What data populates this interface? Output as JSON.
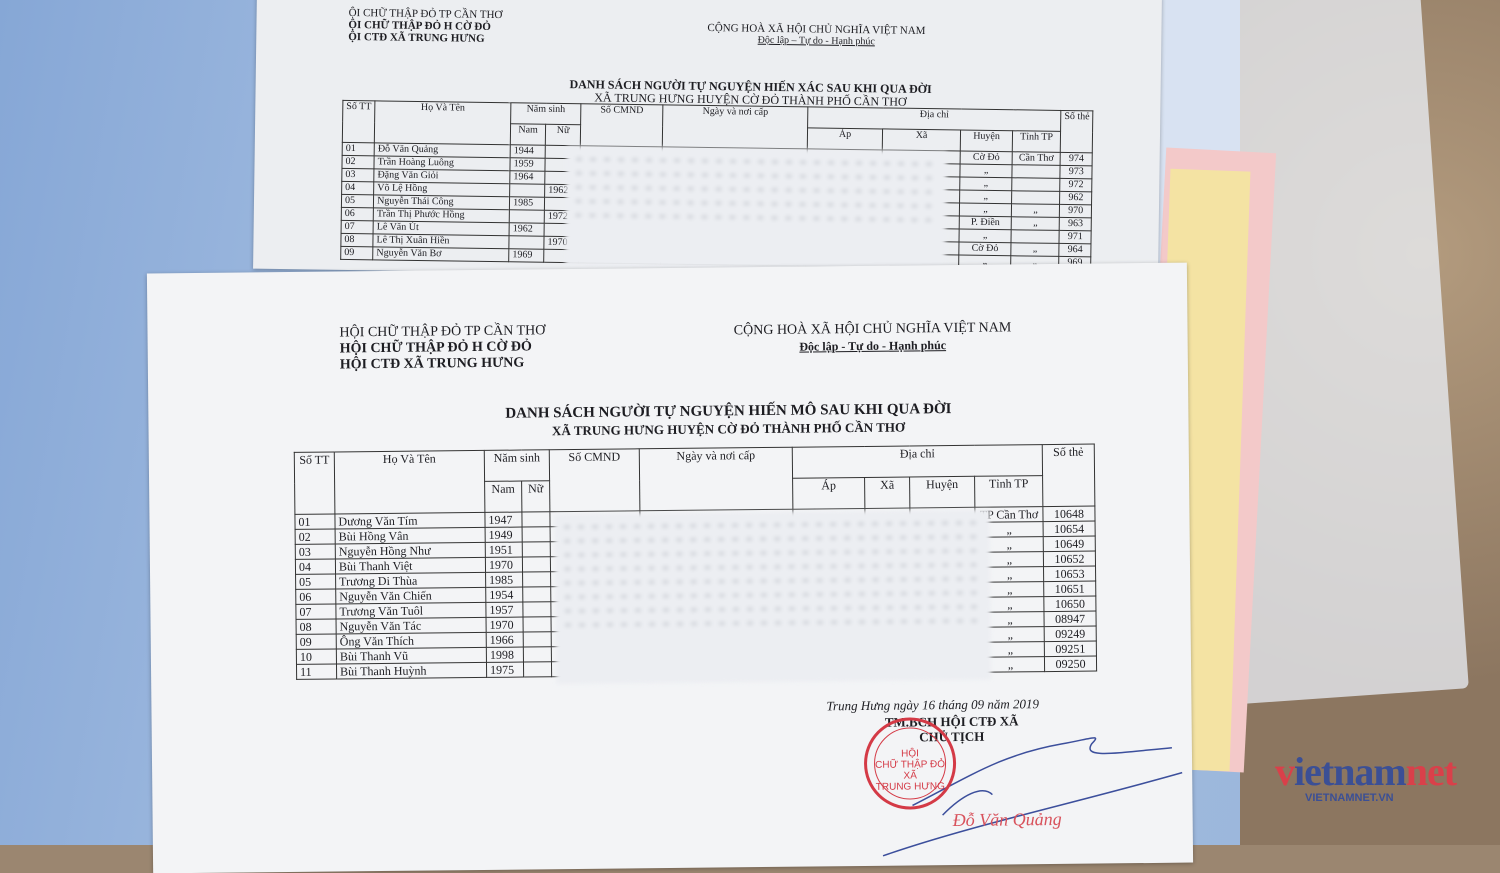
{
  "back_doc": {
    "org": [
      "ỘI CHỮ THẬP ĐỎ TP CẦN THƠ",
      "ỘI CHỮ THẬP ĐỎ H CỜ ĐỎ",
      "ỘI CTĐ XÃ TRUNG HƯNG"
    ],
    "country": "CỘNG HOÀ XÃ HỘI CHỦ NGHĨA VIỆT NAM",
    "motto": "Độc lập – Tự do - Hạnh phúc",
    "title": "DANH SÁCH NGƯỜI TỰ NGUYỆN HIẾN XÁC SAU KHI QUA ĐỜI",
    "subtitle": "XÃ TRUNG HƯNG HUYỆN CỜ ĐỎ THÀNH PHỐ CẦN THƠ",
    "headers": {
      "stt": "Số TT",
      "name": "Họ Và Tên",
      "birth": "Năm sinh",
      "male": "Nam",
      "female": "Nữ",
      "cmnd": "Số CMND",
      "issue": "Ngày và nơi cấp",
      "address": "Địa chỉ",
      "ap": "Áp",
      "xa": "Xã",
      "huyen": "Huyện",
      "tinh": "Tỉnh TP",
      "card": "Số thẻ"
    },
    "rows": [
      [
        "01",
        "Đỗ Văn Quảng",
        "1944",
        "",
        "Cờ Đỏ",
        "Cần Thơ",
        "974"
      ],
      [
        "02",
        "Trần Hoàng Luông",
        "1959",
        "",
        "„",
        "",
        "973"
      ],
      [
        "03",
        "Đặng Văn Giỏi",
        "1964",
        "",
        "„",
        "",
        "972"
      ],
      [
        "04",
        "Võ Lệ Hồng",
        "",
        "1962",
        "„",
        "",
        "962"
      ],
      [
        "05",
        "Nguyễn Thái Công",
        "1985",
        "",
        "„",
        "„",
        "970"
      ],
      [
        "06",
        "Trần Thị Phước Hồng",
        "",
        "1972",
        "P. Điền",
        "„",
        "963"
      ],
      [
        "07",
        "Lê Văn Út",
        "1962",
        "",
        "„",
        "",
        "971"
      ],
      [
        "08",
        "Lê Thị Xuân Hiền",
        "",
        "1970",
        "Cờ Đỏ",
        "„",
        "964"
      ],
      [
        "09",
        "Nguyễn Văn Bơ",
        "1969",
        "",
        "„",
        "„",
        "969"
      ]
    ]
  },
  "front_doc": {
    "org": [
      "HỘI CHỮ THẬP ĐỎ TP CẦN THƠ",
      "HỘI CHỮ THẬP ĐỎ H CỜ ĐỎ",
      "HỘI CTĐ XÃ TRUNG HƯNG"
    ],
    "country": "CỘNG HOÀ XÃ HỘI CHỦ NGHĨA VIỆT NAM",
    "motto": "Độc lập - Tự do - Hạnh phúc",
    "title": "DANH SÁCH NGƯỜI TỰ NGUYỆN HIẾN MÔ SAU KHI QUA ĐỜI",
    "subtitle": "XÃ TRUNG HƯNG HUYỆN CỜ ĐỎ THÀNH PHỐ CẦN THƠ",
    "headers": {
      "stt": "Số TT",
      "name": "Họ Và Tên",
      "birth": "Năm sinh",
      "male": "Nam",
      "female": "Nữ",
      "cmnd": "Số CMND",
      "issue": "Ngày và nơi cấp",
      "address": "Địa chỉ",
      "ap": "Áp",
      "xa": "Xã",
      "huyen": "Huyện",
      "tinh": "Tỉnh TP",
      "card": "Số thẻ"
    },
    "rows": [
      [
        "01",
        "Dương Văn Tím",
        "1947",
        "",
        "",
        "TP Cần Thơ",
        "10648"
      ],
      [
        "02",
        "Bùi Hồng Vân",
        "1949",
        "",
        "",
        "„",
        "10654"
      ],
      [
        "03",
        "Nguyễn Hồng Như",
        "1951",
        "",
        "",
        "„",
        "10649"
      ],
      [
        "04",
        "Bùi Thanh Việt",
        "1970",
        "",
        "",
        "„",
        "10652"
      ],
      [
        "05",
        "Trương Di Thùa",
        "1985",
        "",
        "",
        "„",
        "10653"
      ],
      [
        "06",
        "Nguyễn Văn Chiến",
        "1954",
        "",
        "",
        "„",
        "10651"
      ],
      [
        "07",
        "Trương Văn Tuôl",
        "1957",
        "",
        "",
        "„",
        "10650"
      ],
      [
        "08",
        "Nguyễn Văn Tác",
        "1970",
        "",
        "",
        "„",
        "08947"
      ],
      [
        "09",
        "Ông Văn Thích",
        "1966",
        "",
        "",
        "„",
        "09249"
      ],
      [
        "10",
        "Bùi Thanh Vũ",
        "1998",
        "",
        "",
        "„",
        "09251"
      ],
      [
        "11",
        "Bùi Thanh Huỳnh",
        "1975",
        "",
        "",
        "„",
        "09250"
      ]
    ],
    "date_line": "Trung Hưng ngày 16 tháng 09 năm 2019",
    "sign_title": "TM.BCH HỘI CTĐ XÃ",
    "sign_role": "CHỦ TỊCH",
    "stamp_text": [
      "HỘI",
      "CHỮ THẬP ĐỎ",
      "XÃ",
      "TRUNG HƯNG"
    ],
    "signer": "Đỗ Văn Quảng"
  },
  "watermark": {
    "logo": "vietnamnet",
    "url": "VIETNAMNET.VN",
    "colors": {
      "red": "#d9404a",
      "blue": "#3b4f95"
    }
  }
}
